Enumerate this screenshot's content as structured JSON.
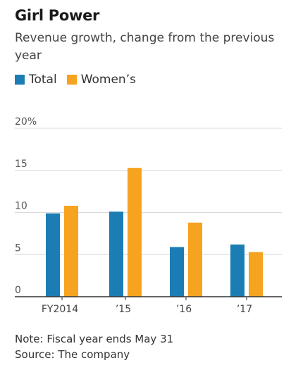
{
  "title": "Girl Power",
  "subtitle": "Revenue growth, change from the previous year",
  "colors": {
    "total": "#1b7db4",
    "womens": "#f6a320"
  },
  "notes": [
    "Note: Fiscal year ends May 31",
    "Source: The company"
  ],
  "chart_data": {
    "type": "bar",
    "categories": [
      "FY2014",
      "’15",
      "’16",
      "’17"
    ],
    "series": [
      {
        "name": "Total",
        "values": [
          9.9,
          10.1,
          5.9,
          6.2
        ]
      },
      {
        "name": "Women’s",
        "values": [
          10.8,
          15.3,
          8.8,
          5.3
        ]
      }
    ],
    "ylim": [
      0,
      20
    ],
    "yticks": [
      0,
      5,
      10,
      15,
      20
    ],
    "ytick_labels": [
      "0",
      "5",
      "10",
      "15",
      "20%"
    ],
    "grid": true,
    "legend": "top-left"
  }
}
